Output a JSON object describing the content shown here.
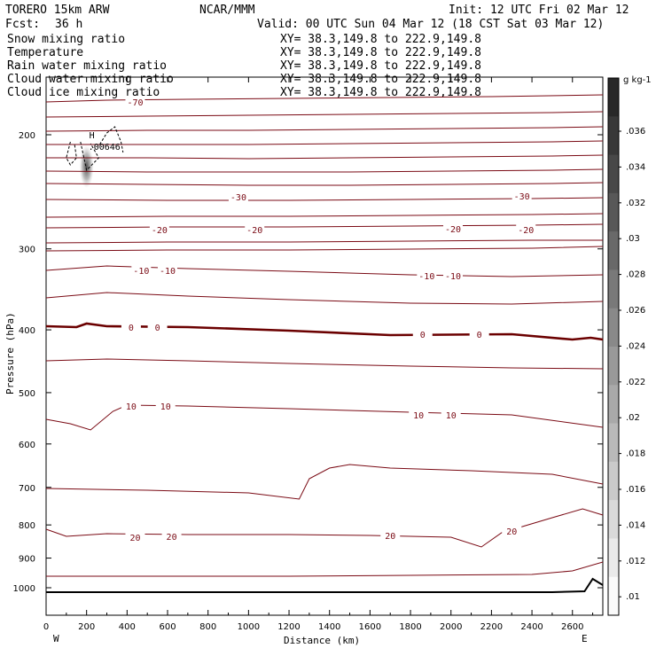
{
  "header": {
    "model": "TORERO  15km ARW",
    "org": "NCAR/MMM",
    "init": "Init: 12 UTC Fri 02 Mar 12",
    "fcst_label": "Fcst:",
    "fcst_value": "36 h",
    "valid": "Valid: 00 UTC Sun 04 Mar 12 (18 CST Sat 03 Mar 12)"
  },
  "legend": [
    {
      "name": "Snow mixing ratio",
      "xy": "XY=  38.3,149.8 to 222.9,149.8",
      "color": "#000000"
    },
    {
      "name": "Temperature",
      "xy": "XY=  38.3,149.8 to 222.9,149.8",
      "color": "#b0101a"
    },
    {
      "name": "Rain water mixing ratio",
      "xy": "XY=  38.3,149.8 to 222.9,149.8",
      "color": "#cc1111"
    },
    {
      "name": "Cloud water mixing ratio",
      "xy": "XY=  38.3,149.8 to 222.9,149.8",
      "color": "#1a1acc"
    },
    {
      "name": "Cloud ice mixing ratio",
      "xy": "XY=  38.3,149.8 to 222.9,149.8",
      "color": "#000000"
    }
  ],
  "colors": {
    "temperature": "#7a0a14",
    "freezing": "#6b0000",
    "terrain": "#000000",
    "ice": "#555555"
  },
  "chart_data": {
    "type": "line",
    "xlabel": "Distance (km)",
    "ylabel": "Pressure (hPa)",
    "xlim": [
      0,
      2750
    ],
    "ylim": [
      150,
      1050
    ],
    "y_scale": "log",
    "x_ticks": [
      "0",
      "200",
      "400",
      "600",
      "800",
      "1000",
      "1200",
      "1400",
      "1600",
      "1800",
      "2000",
      "2200",
      "2400",
      "2600"
    ],
    "y_ticks": [
      "200",
      "300",
      "400",
      "500",
      "600",
      "700",
      "800",
      "900",
      "1000"
    ],
    "x_end_labels": {
      "left": "W",
      "right": "E"
    },
    "isotherms": [
      {
        "t": -70,
        "pts": [
          [
            0,
            115
          ],
          [
            300,
            113
          ],
          [
            700,
            112
          ],
          [
            1200,
            111
          ],
          [
            1700,
            110
          ],
          [
            2200,
            109
          ],
          [
            2750,
            107
          ]
        ],
        "labels": [
          [
            440,
            115,
            "-70"
          ]
        ]
      },
      {
        "t": -65,
        "pts": [
          [
            0,
            132
          ],
          [
            500,
            131
          ],
          [
            1000,
            130
          ],
          [
            1500,
            129
          ],
          [
            2000,
            128
          ],
          [
            2500,
            127
          ],
          [
            2750,
            126
          ]
        ]
      },
      {
        "t": -60,
        "pts": [
          [
            0,
            148
          ],
          [
            500,
            147
          ],
          [
            1000,
            147
          ],
          [
            1500,
            146
          ],
          [
            2000,
            145
          ],
          [
            2500,
            144
          ],
          [
            2750,
            143
          ]
        ]
      },
      {
        "t": -55,
        "pts": [
          [
            0,
            163
          ],
          [
            500,
            163
          ],
          [
            1000,
            163
          ],
          [
            1500,
            162
          ],
          [
            2000,
            161
          ],
          [
            2500,
            160
          ],
          [
            2750,
            159
          ]
        ]
      },
      {
        "t": -50,
        "pts": [
          [
            0,
            178
          ],
          [
            500,
            178
          ],
          [
            1000,
            179
          ],
          [
            1500,
            178
          ],
          [
            2000,
            177
          ],
          [
            2500,
            176
          ],
          [
            2750,
            175
          ]
        ]
      },
      {
        "t": -45,
        "pts": [
          [
            0,
            193
          ],
          [
            500,
            194
          ],
          [
            1000,
            194
          ],
          [
            1500,
            194
          ],
          [
            2000,
            193
          ],
          [
            2500,
            192
          ],
          [
            2750,
            191
          ]
        ]
      },
      {
        "t": -40,
        "pts": [
          [
            0,
            207
          ],
          [
            500,
            208
          ],
          [
            1000,
            209
          ],
          [
            1500,
            209
          ],
          [
            2000,
            208
          ],
          [
            2500,
            207
          ],
          [
            2750,
            206
          ]
        ]
      },
      {
        "t": -35,
        "pts": [
          [
            0,
            225
          ],
          [
            600,
            226
          ],
          [
            1200,
            226
          ],
          [
            1800,
            225
          ],
          [
            2400,
            224
          ],
          [
            2750,
            223
          ]
        ]
      },
      {
        "t": -30,
        "pts": [
          [
            0,
            245
          ],
          [
            600,
            244
          ],
          [
            1200,
            244
          ],
          [
            1800,
            243
          ],
          [
            2400,
            242
          ],
          [
            2750,
            241
          ]
        ],
        "labels": [
          [
            950,
            222,
            "-30"
          ],
          [
            2350,
            221,
            "-30"
          ]
        ]
      },
      {
        "t": -25,
        "pts": [
          [
            0,
            257
          ],
          [
            600,
            256
          ],
          [
            1200,
            256
          ],
          [
            1800,
            255
          ],
          [
            2400,
            254
          ],
          [
            2750,
            253
          ]
        ]
      },
      {
        "t": -20,
        "pts": [
          [
            0,
            274
          ],
          [
            600,
            273
          ],
          [
            1200,
            273
          ],
          [
            1800,
            272
          ],
          [
            2400,
            271
          ],
          [
            2750,
            271
          ]
        ],
        "labels": [
          [
            560,
            259,
            "-20"
          ],
          [
            1030,
            259,
            "-20"
          ],
          [
            2010,
            258,
            "-20"
          ],
          [
            2370,
            259,
            "-20"
          ]
        ]
      },
      {
        "t": -15,
        "pts": [
          [
            0,
            283
          ],
          [
            600,
            282
          ],
          [
            1200,
            282
          ],
          [
            1800,
            281
          ],
          [
            2400,
            280
          ],
          [
            2750,
            278
          ]
        ]
      },
      {
        "t": -10,
        "pts": [
          [
            0,
            305
          ],
          [
            300,
            300
          ],
          [
            700,
            303
          ],
          [
            1200,
            306
          ],
          [
            1800,
            310
          ],
          [
            2300,
            312
          ],
          [
            2750,
            310
          ]
        ],
        "labels": [
          [
            470,
            305,
            "-10"
          ],
          [
            600,
            305,
            "-10"
          ],
          [
            1880,
            311,
            "-10"
          ],
          [
            2010,
            311,
            "-10"
          ]
        ]
      },
      {
        "t": -5,
        "pts": [
          [
            0,
            336
          ],
          [
            300,
            330
          ],
          [
            700,
            334
          ],
          [
            1200,
            338
          ],
          [
            1800,
            342
          ],
          [
            2300,
            343
          ],
          [
            2750,
            340
          ]
        ]
      },
      {
        "t": 0,
        "freezing": true,
        "pts": [
          [
            0,
            368
          ],
          [
            150,
            369
          ],
          [
            200,
            365
          ],
          [
            300,
            368
          ],
          [
            700,
            369
          ],
          [
            1200,
            373
          ],
          [
            1700,
            378
          ],
          [
            2300,
            377
          ],
          [
            2600,
            383
          ],
          [
            2690,
            381
          ],
          [
            2750,
            383
          ]
        ],
        "labels": [
          [
            420,
            369,
            "0"
          ],
          [
            550,
            369,
            "0"
          ],
          [
            1860,
            377,
            "0"
          ],
          [
            2140,
            377,
            "0"
          ]
        ]
      },
      {
        "t": 5,
        "pts": [
          [
            0,
            407
          ],
          [
            300,
            405
          ],
          [
            700,
            407
          ],
          [
            1200,
            410
          ],
          [
            1800,
            413
          ],
          [
            2300,
            415
          ],
          [
            2750,
            416
          ]
        ]
      },
      {
        "t": 10,
        "pts": [
          [
            0,
            473
          ],
          [
            120,
            478
          ],
          [
            220,
            485
          ],
          [
            330,
            464
          ],
          [
            400,
            457
          ],
          [
            700,
            458
          ],
          [
            1200,
            461
          ],
          [
            1800,
            465
          ],
          [
            2300,
            468
          ],
          [
            2750,
            482
          ]
        ],
        "labels": [
          [
            420,
            458,
            "10"
          ],
          [
            590,
            458,
            "10"
          ],
          [
            1840,
            468,
            "10"
          ],
          [
            2000,
            468,
            "10"
          ]
        ]
      },
      {
        "t": 15,
        "pts": [
          [
            0,
            551
          ],
          [
            500,
            553
          ],
          [
            1000,
            556
          ],
          [
            1250,
            563
          ],
          [
            1300,
            540
          ],
          [
            1400,
            528
          ],
          [
            1500,
            524
          ],
          [
            1700,
            528
          ],
          [
            2100,
            531
          ],
          [
            2500,
            535
          ],
          [
            2750,
            546
          ]
        ]
      },
      {
        "t": 20,
        "pts": [
          [
            0,
            597
          ],
          [
            100,
            605
          ],
          [
            300,
            602
          ],
          [
            700,
            603
          ],
          [
            1200,
            603
          ],
          [
            1600,
            604
          ],
          [
            2000,
            606
          ],
          [
            2150,
            617
          ],
          [
            2250,
            601
          ],
          [
            2500,
            584
          ],
          [
            2650,
            574
          ],
          [
            2750,
            581
          ]
        ],
        "labels": [
          [
            440,
            606,
            "20"
          ],
          [
            620,
            605,
            "20"
          ],
          [
            1700,
            604,
            "20"
          ],
          [
            2300,
            599,
            "20"
          ]
        ]
      },
      {
        "t": 25,
        "pts": [
          [
            0,
            650
          ],
          [
            600,
            650
          ],
          [
            1200,
            650
          ],
          [
            1800,
            649
          ],
          [
            2400,
            648
          ],
          [
            2600,
            644
          ],
          [
            2750,
            634
          ]
        ]
      }
    ],
    "terrain": [
      [
        0,
        668
      ],
      [
        500,
        668
      ],
      [
        1000,
        668
      ],
      [
        1500,
        668
      ],
      [
        2000,
        668
      ],
      [
        2500,
        668
      ],
      [
        2660,
        667
      ],
      [
        2700,
        653
      ],
      [
        2750,
        660
      ]
    ],
    "snow_contours": [
      {
        "pts": [
          [
            265,
            163
          ],
          [
            300,
            150
          ],
          [
            340,
            143
          ],
          [
            370,
            160
          ],
          [
            380,
            172
          ]
        ]
      },
      {
        "pts": [
          [
            120,
            160
          ],
          [
            100,
            178
          ],
          [
            120,
            186
          ],
          [
            150,
            178
          ],
          [
            140,
            162
          ]
        ]
      },
      {
        "pts": [
          [
            170,
            160
          ],
          [
            200,
            192
          ],
          [
            260,
            178
          ],
          [
            220,
            162
          ]
        ]
      }
    ],
    "ice_max": {
      "x": 200,
      "y": 156,
      "label": "H",
      "value": ".00646"
    },
    "colorbar": {
      "unit": "g kg-1",
      "labels": [
        ".036",
        ".034",
        ".032",
        ".03",
        ".028",
        ".026",
        ".024",
        ".022",
        ".02",
        ".018",
        ".016",
        ".014",
        ".012",
        ".01"
      ]
    }
  }
}
